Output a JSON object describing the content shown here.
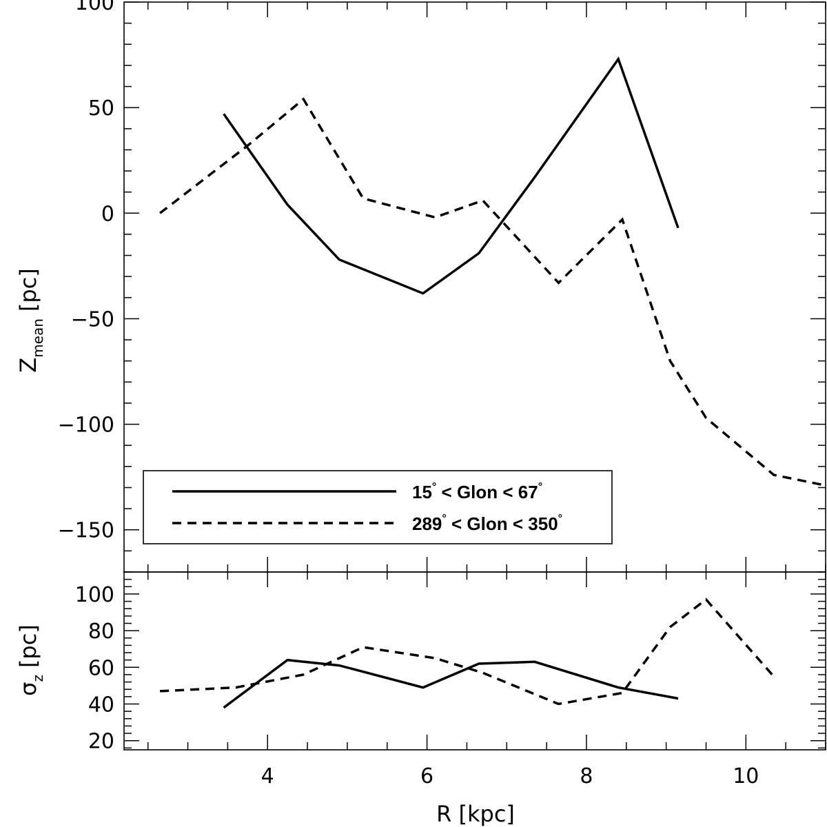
{
  "chart_data": [
    {
      "type": "line",
      "panel": "top",
      "ylabel": "Z",
      "ylabel_sub": "mean",
      "ylabel_unit": "[pc]",
      "xlim": [
        2.2,
        11.0
      ],
      "ylim": [
        -170,
        100
      ],
      "yticks": [
        100,
        50,
        0,
        -50,
        -100,
        -150
      ],
      "ytick_labels": [
        "100",
        "50",
        "0",
        "−50",
        "−100",
        "−150"
      ],
      "series": [
        {
          "name": "15° < Glon < 67°",
          "style": "solid",
          "x": [
            3.45,
            4.25,
            4.9,
            5.95,
            6.65,
            7.35,
            8.4,
            9.15
          ],
          "y": [
            47,
            4,
            -22,
            -38,
            -19,
            17,
            73,
            -7
          ]
        },
        {
          "name": "289° < Glon < 350°",
          "style": "dashed",
          "x": [
            2.65,
            3.75,
            4.45,
            5.2,
            6.1,
            6.7,
            7.65,
            8.45,
            9.05,
            9.5,
            10.35,
            11.0
          ],
          "y": [
            0,
            32,
            54,
            7,
            -2,
            6,
            -33,
            -3,
            -70,
            -97,
            -124,
            -129
          ]
        }
      ],
      "legend": {
        "placement": "bottom-left",
        "entries": [
          {
            "pre": "15",
            "deg": "°",
            "mid": " < Glon < 67",
            "deg2": "°"
          },
          {
            "pre": "289",
            "deg": "°",
            "mid": " < Glon < 350",
            "deg2": "°"
          }
        ]
      }
    },
    {
      "type": "line",
      "panel": "bottom",
      "xlabel": "R  [kpc]",
      "ylabel": "σ",
      "ylabel_sub": "z",
      "ylabel_unit": "[pc]",
      "xlim": [
        2.2,
        11.0
      ],
      "ylim": [
        15,
        112
      ],
      "xticks": [
        4,
        6,
        8,
        10
      ],
      "xtick_labels": [
        "4",
        "6",
        "8",
        "10"
      ],
      "yticks": [
        20,
        40,
        60,
        80,
        100
      ],
      "ytick_labels": [
        "20",
        "40",
        "60",
        "80",
        "100"
      ],
      "series": [
        {
          "name": "15° < Glon < 67°",
          "style": "solid",
          "x": [
            3.45,
            4.25,
            4.9,
            5.95,
            6.65,
            7.35,
            8.4,
            9.15
          ],
          "y": [
            38,
            64,
            61,
            49,
            62,
            63,
            49,
            43
          ]
        },
        {
          "name": "289° < Glon < 350°",
          "style": "dashed",
          "x": [
            2.65,
            3.6,
            4.45,
            5.2,
            6.1,
            6.7,
            7.65,
            8.45,
            9.05,
            9.5,
            10.35
          ],
          "y": [
            47,
            49,
            56,
            71,
            65,
            57,
            40,
            46,
            82,
            97,
            55
          ]
        }
      ]
    }
  ]
}
